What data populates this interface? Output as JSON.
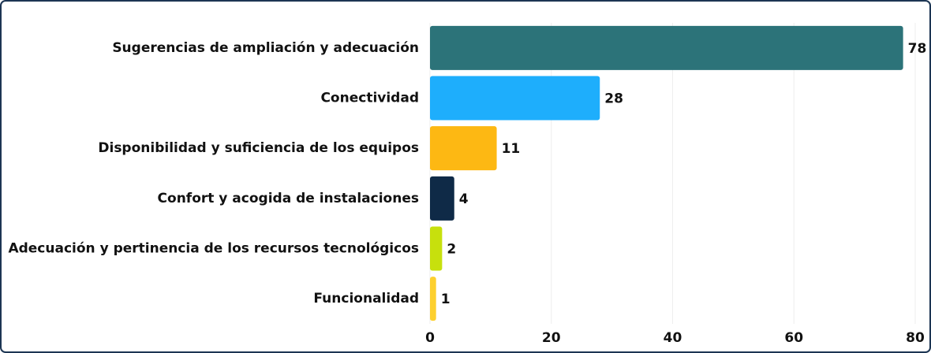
{
  "chart_data": {
    "type": "barh",
    "categories": [
      "Sugerencias de ampliación y adecuación",
      "Conectividad",
      "Disponibilidad y suficiencia de los equipos",
      "Confort y acogida de instalaciones",
      "Adecuación y pertinencia de los recursos tecnológicos",
      "Funcionalidad"
    ],
    "values": [
      78,
      28,
      11,
      4,
      2,
      1
    ],
    "colors": [
      "#2c7379",
      "#1eaefc",
      "#fdb813",
      "#0f2a47",
      "#c7e00d",
      "#fdd02f"
    ],
    "xlim": [
      0,
      80
    ],
    "xticks": [
      0,
      20,
      40,
      60,
      80
    ],
    "grid": true
  }
}
